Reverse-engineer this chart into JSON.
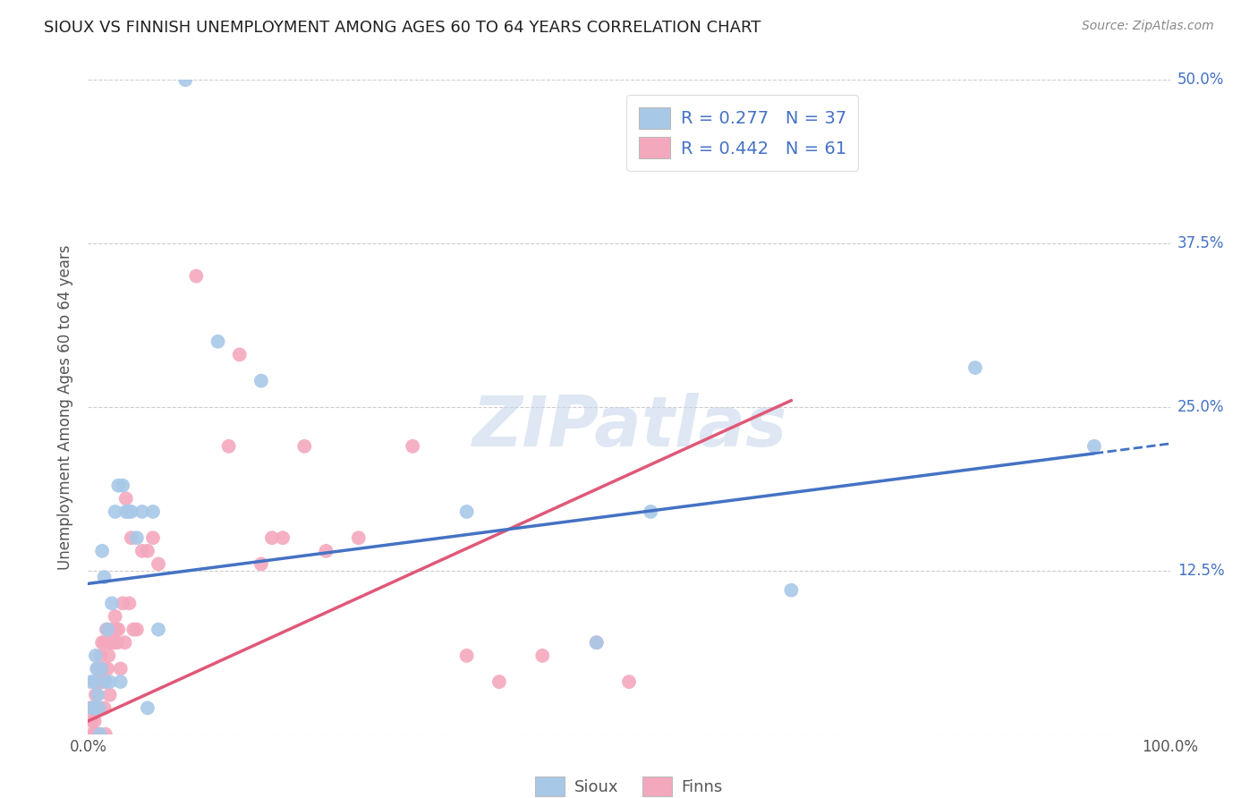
{
  "title": "SIOUX VS FINNISH UNEMPLOYMENT AMONG AGES 60 TO 64 YEARS CORRELATION CHART",
  "source": "Source: ZipAtlas.com",
  "ylabel": "Unemployment Among Ages 60 to 64 years",
  "xlim": [
    0,
    1.0
  ],
  "ylim": [
    0,
    0.5
  ],
  "xticks": [
    0.0,
    0.25,
    0.5,
    0.75,
    1.0
  ],
  "xticklabels": [
    "0.0%",
    "",
    "",
    "",
    "100.0%"
  ],
  "yticks": [
    0.0,
    0.125,
    0.25,
    0.375,
    0.5
  ],
  "yticklabels": [
    "",
    "12.5%",
    "25.0%",
    "37.5%",
    "50.0%"
  ],
  "watermark": "ZIPatlas",
  "legend_sioux_r": "0.277",
  "legend_sioux_n": "37",
  "legend_finns_r": "0.442",
  "legend_finns_n": "61",
  "sioux_color": "#a8c8e8",
  "finns_color": "#f4a8be",
  "sioux_line_color": "#4472c4",
  "finns_line_color": "#e05878",
  "background_color": "#ffffff",
  "grid_color": "#cccccc",
  "sioux_x": [
    0.003,
    0.004,
    0.005,
    0.006,
    0.007,
    0.008,
    0.009,
    0.01,
    0.011,
    0.012,
    0.013,
    0.015,
    0.016,
    0.018,
    0.02,
    0.022,
    0.025,
    0.028,
    0.03,
    0.032,
    0.035,
    0.038,
    0.04,
    0.045,
    0.05,
    0.055,
    0.06,
    0.065,
    0.09,
    0.12,
    0.16,
    0.35,
    0.47,
    0.52,
    0.65,
    0.82,
    0.93
  ],
  "sioux_y": [
    0.04,
    0.02,
    0.02,
    0.04,
    0.06,
    0.05,
    0.03,
    0.02,
    0.0,
    0.05,
    0.14,
    0.12,
    0.04,
    0.08,
    0.04,
    0.1,
    0.17,
    0.19,
    0.04,
    0.19,
    0.17,
    0.17,
    0.17,
    0.15,
    0.17,
    0.02,
    0.17,
    0.08,
    0.5,
    0.3,
    0.27,
    0.17,
    0.07,
    0.17,
    0.11,
    0.28,
    0.22
  ],
  "finns_x": [
    0.002,
    0.003,
    0.004,
    0.005,
    0.006,
    0.006,
    0.007,
    0.007,
    0.008,
    0.008,
    0.009,
    0.009,
    0.01,
    0.01,
    0.011,
    0.012,
    0.013,
    0.013,
    0.014,
    0.015,
    0.015,
    0.016,
    0.017,
    0.018,
    0.019,
    0.02,
    0.021,
    0.022,
    0.023,
    0.024,
    0.025,
    0.026,
    0.027,
    0.028,
    0.03,
    0.032,
    0.034,
    0.035,
    0.038,
    0.04,
    0.042,
    0.045,
    0.05,
    0.055,
    0.06,
    0.065,
    0.1,
    0.13,
    0.14,
    0.16,
    0.17,
    0.18,
    0.2,
    0.22,
    0.25,
    0.3,
    0.35,
    0.38,
    0.42,
    0.47,
    0.5
  ],
  "finns_y": [
    0.02,
    0.01,
    0.0,
    0.02,
    0.01,
    0.0,
    0.03,
    0.0,
    0.04,
    0.02,
    0.0,
    0.05,
    0.02,
    0.0,
    0.04,
    0.06,
    0.07,
    0.05,
    0.04,
    0.07,
    0.02,
    0.0,
    0.08,
    0.05,
    0.06,
    0.03,
    0.07,
    0.08,
    0.07,
    0.07,
    0.09,
    0.08,
    0.07,
    0.08,
    0.05,
    0.1,
    0.07,
    0.18,
    0.1,
    0.15,
    0.08,
    0.08,
    0.14,
    0.14,
    0.15,
    0.13,
    0.35,
    0.22,
    0.29,
    0.13,
    0.15,
    0.15,
    0.22,
    0.14,
    0.15,
    0.22,
    0.06,
    0.04,
    0.06,
    0.07,
    0.04
  ],
  "sioux_line_x0": 0.0,
  "sioux_line_y0": 0.115,
  "sioux_line_x1": 1.0,
  "sioux_line_y1": 0.222,
  "sioux_line_solid_end": 0.93,
  "finns_line_x0": 0.0,
  "finns_line_y0": 0.01,
  "finns_line_x1": 0.65,
  "finns_line_y1": 0.255
}
